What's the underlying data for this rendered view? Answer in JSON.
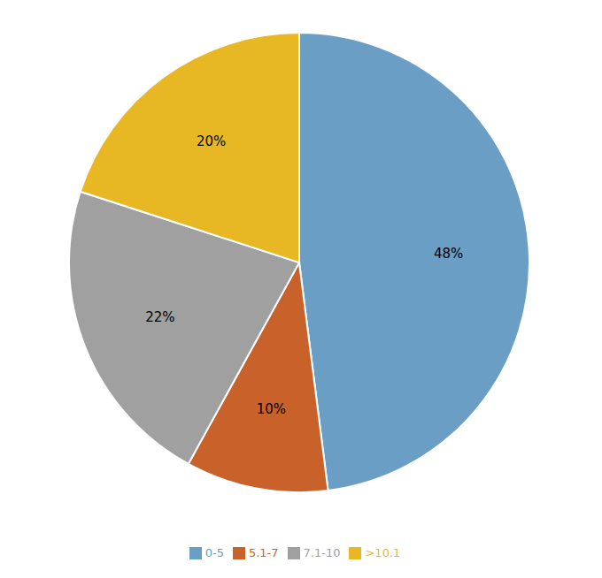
{
  "chart_data": {
    "type": "pie",
    "categories": [
      "0-5",
      "5.1-7",
      "7.1-10",
      ">10.1"
    ],
    "values": [
      48,
      10,
      22,
      20
    ],
    "value_labels": [
      "48%",
      "10%",
      "22%",
      "20%"
    ],
    "colors": [
      "#6a9ec5",
      "#c8622a",
      "#a0a0a0",
      "#e8b824"
    ],
    "data_labels": true,
    "legend": "bottom"
  }
}
